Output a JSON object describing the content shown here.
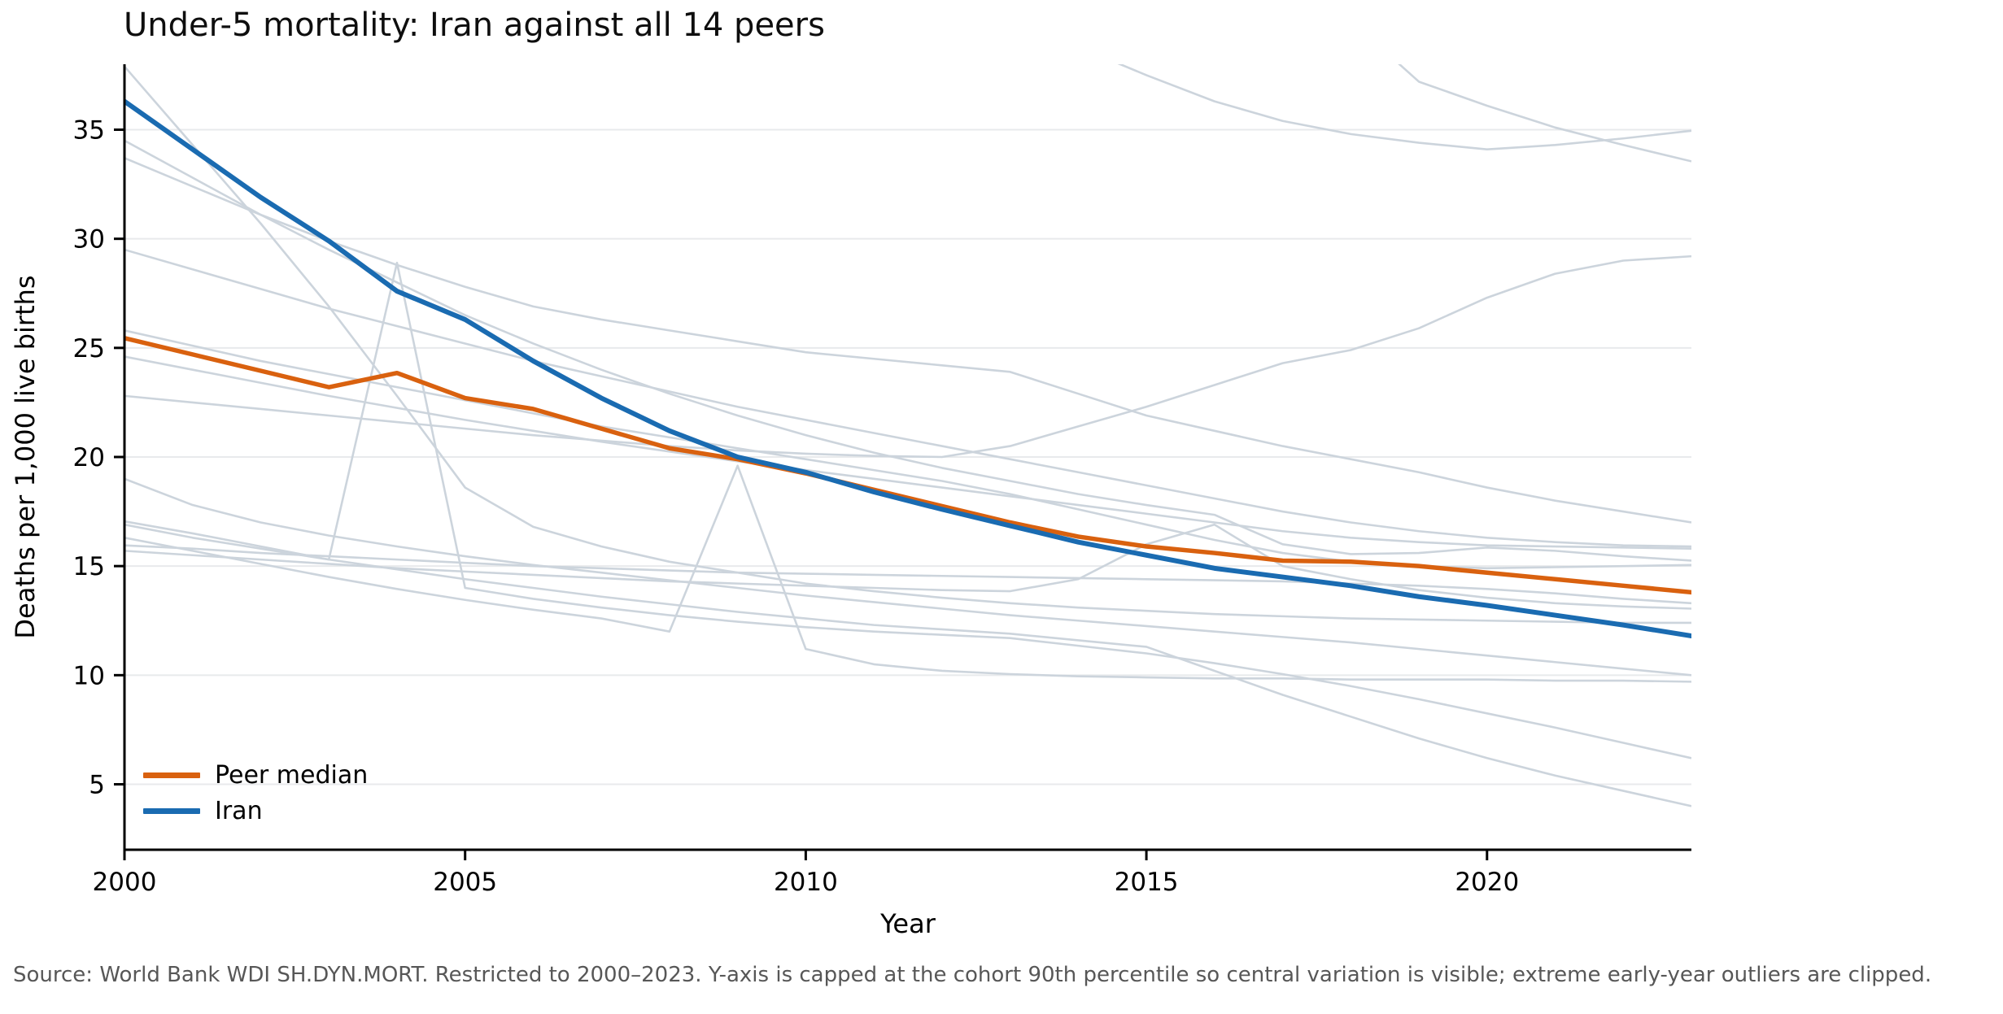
{
  "title": "Under-5 mortality: Iran against all 14 peers",
  "footnote": "Source: World Bank WDI SH.DYN.MORT. Restricted to 2000–2023. Y-axis is capped at the cohort 90th percentile so central variation is visible; extreme early-year outliers are clipped.",
  "colors": {
    "iran": "#1a6bb1",
    "peer_median": "#d9610f",
    "peer_line": "#ccd4dc",
    "gridline": "#e8eaec",
    "spine": "#000000",
    "footnote_text": "#575757",
    "title_text": "#0e0e0e"
  },
  "legend": [
    {
      "label": "Peer median",
      "color_key": "peer_median"
    },
    {
      "label": "Iran",
      "color_key": "iran"
    }
  ],
  "chart_data": {
    "type": "line",
    "title": "Under-5 mortality: Iran against all 14 peers",
    "xlabel": "Year",
    "ylabel": "Deaths per 1,000 live births",
    "x": [
      2000,
      2001,
      2002,
      2003,
      2004,
      2005,
      2006,
      2007,
      2008,
      2009,
      2010,
      2011,
      2012,
      2013,
      2014,
      2015,
      2016,
      2017,
      2018,
      2019,
      2020,
      2021,
      2022,
      2023
    ],
    "x_ticks": [
      2000,
      2005,
      2010,
      2015,
      2020
    ],
    "y_ticks": [
      5,
      10,
      15,
      20,
      25,
      30,
      35
    ],
    "xlim": [
      2000,
      2023
    ],
    "ylim": [
      2,
      38
    ],
    "grid": "horizontal-only",
    "legend_position": "lower-left",
    "series": [
      {
        "name": "Iran",
        "color_key": "iran",
        "stroke_width": 6,
        "values": [
          36.3,
          34.1,
          31.9,
          29.9,
          27.6,
          26.3,
          24.4,
          22.7,
          21.2,
          20.0,
          19.3,
          18.4,
          17.6,
          16.85,
          16.1,
          15.5,
          14.9,
          14.5,
          14.1,
          13.6,
          13.2,
          12.75,
          12.3,
          11.8
        ]
      },
      {
        "name": "Peer median",
        "color_key": "peer_median",
        "stroke_width": 5.5,
        "values": [
          25.45,
          24.7,
          23.95,
          23.2,
          23.85,
          22.7,
          22.2,
          21.3,
          20.4,
          19.9,
          19.25,
          18.5,
          17.75,
          17.0,
          16.35,
          15.9,
          15.6,
          15.25,
          15.2,
          15.0,
          14.7,
          14.4,
          14.1,
          13.8
        ]
      }
    ],
    "peers": [
      {
        "name": "peer-steep-faller",
        "values": [
          37.9,
          34.3,
          30.7,
          26.9,
          22.8,
          18.6,
          16.8,
          15.9,
          15.2,
          14.7,
          14.2,
          13.85,
          13.55,
          13.3,
          13.1,
          12.95,
          12.8,
          12.7,
          12.6,
          12.55,
          12.5,
          12.45,
          12.4,
          12.4
        ]
      },
      {
        "name": "peer-2",
        "values": [
          34.5,
          32.8,
          31.1,
          29.5,
          28.0,
          26.5,
          25.2,
          24.0,
          22.9,
          21.9,
          21.0,
          20.2,
          19.5,
          18.9,
          18.3,
          17.8,
          17.35,
          16.0,
          15.55,
          15.6,
          15.85,
          15.7,
          15.45,
          15.25
        ]
      },
      {
        "name": "peer-3",
        "values": [
          33.7,
          32.4,
          31.1,
          29.9,
          28.8,
          27.8,
          26.9,
          26.3,
          25.8,
          25.3,
          24.8,
          24.5,
          24.2,
          23.9,
          22.9,
          21.9,
          21.2,
          20.5,
          19.9,
          19.3,
          18.6,
          18.0,
          17.5,
          17.0
        ]
      },
      {
        "name": "peer-4",
        "values": [
          29.5,
          28.6,
          27.7,
          26.8,
          26.0,
          25.2,
          24.4,
          23.7,
          23.0,
          22.3,
          21.7,
          21.1,
          20.5,
          19.9,
          19.3,
          18.7,
          18.1,
          17.5,
          17.0,
          16.6,
          16.3,
          16.1,
          15.95,
          15.9
        ]
      },
      {
        "name": "peer-5",
        "values": [
          25.8,
          25.1,
          24.4,
          23.8,
          23.2,
          22.6,
          22.0,
          21.4,
          20.9,
          20.4,
          19.9,
          19.4,
          18.9,
          18.3,
          17.6,
          16.9,
          16.2,
          15.6,
          15.2,
          15.0,
          14.9,
          14.95,
          15.0,
          15.05
        ]
      },
      {
        "name": "peer-6",
        "values": [
          24.6,
          24.0,
          23.4,
          22.8,
          22.25,
          21.7,
          21.2,
          20.7,
          20.25,
          19.8,
          19.4,
          19.0,
          18.6,
          18.2,
          17.8,
          17.4,
          17.0,
          16.6,
          16.3,
          16.1,
          15.95,
          15.9,
          15.85,
          15.8
        ]
      },
      {
        "name": "peer-riser",
        "values": [
          22.8,
          22.5,
          22.2,
          21.9,
          21.6,
          21.3,
          21.0,
          20.75,
          20.5,
          20.3,
          20.15,
          20.05,
          20.0,
          20.5,
          21.4,
          22.3,
          23.3,
          24.3,
          24.9,
          25.9,
          27.3,
          28.4,
          29.0,
          29.2
        ]
      },
      {
        "name": "peer-8",
        "values": [
          19.0,
          17.8,
          17.0,
          16.4,
          15.9,
          15.45,
          15.05,
          14.7,
          14.35,
          14.0,
          13.65,
          13.35,
          13.05,
          12.75,
          12.5,
          12.25,
          12.0,
          11.75,
          11.5,
          11.2,
          10.9,
          10.6,
          10.3,
          10.0
        ]
      },
      {
        "name": "peer-spike-2004",
        "values": [
          17.05,
          16.5,
          15.9,
          15.3,
          28.9,
          14.0,
          13.5,
          13.1,
          12.75,
          12.45,
          12.2,
          12.0,
          11.85,
          11.7,
          11.35,
          11.0,
          10.55,
          10.05,
          9.5,
          8.9,
          8.25,
          7.6,
          6.9,
          6.2
        ]
      },
      {
        "name": "peer-spike-2009",
        "values": [
          16.3,
          15.7,
          15.1,
          14.5,
          13.95,
          13.45,
          13.0,
          12.6,
          12.0,
          19.6,
          11.2,
          10.5,
          10.2,
          10.05,
          9.95,
          9.9,
          9.85,
          9.85,
          9.8,
          9.8,
          9.8,
          9.75,
          9.75,
          9.7
        ]
      },
      {
        "name": "peer-11",
        "values": [
          15.95,
          15.8,
          15.6,
          15.45,
          15.3,
          15.15,
          15.0,
          14.9,
          14.8,
          14.7,
          14.65,
          14.6,
          14.55,
          14.5,
          14.45,
          14.4,
          14.35,
          14.3,
          14.2,
          14.1,
          13.95,
          13.75,
          13.5,
          13.3
        ]
      },
      {
        "name": "peer-bump-2016",
        "values": [
          15.7,
          15.5,
          15.3,
          15.1,
          14.9,
          14.75,
          14.6,
          14.45,
          14.3,
          14.2,
          14.1,
          14.0,
          13.9,
          13.85,
          14.4,
          16.0,
          16.9,
          15.0,
          14.4,
          13.9,
          13.55,
          13.3,
          13.15,
          13.05
        ]
      },
      {
        "name": "peer-plunger",
        "values": [
          16.9,
          16.3,
          15.8,
          15.3,
          14.85,
          14.4,
          14.0,
          13.6,
          13.25,
          12.9,
          12.6,
          12.3,
          12.1,
          11.9,
          11.6,
          11.3,
          10.2,
          9.1,
          8.1,
          7.1,
          6.2,
          5.4,
          4.7,
          4.0
        ]
      },
      {
        "name": "peer-top-entrant-a",
        "values": [
          41,
          41,
          41,
          41,
          41,
          41,
          41,
          41,
          41,
          41,
          41,
          41,
          41,
          41,
          38.8,
          37.5,
          36.3,
          35.4,
          34.8,
          34.4,
          34.1,
          34.3,
          34.6,
          34.95
        ]
      },
      {
        "name": "peer-top-entrant-b",
        "values": [
          41,
          41,
          41,
          41,
          41,
          41,
          41,
          41,
          41,
          41,
          41,
          41,
          41,
          41,
          41,
          41,
          41,
          41,
          40.0,
          37.2,
          36.1,
          35.1,
          34.3,
          33.55
        ]
      }
    ]
  }
}
